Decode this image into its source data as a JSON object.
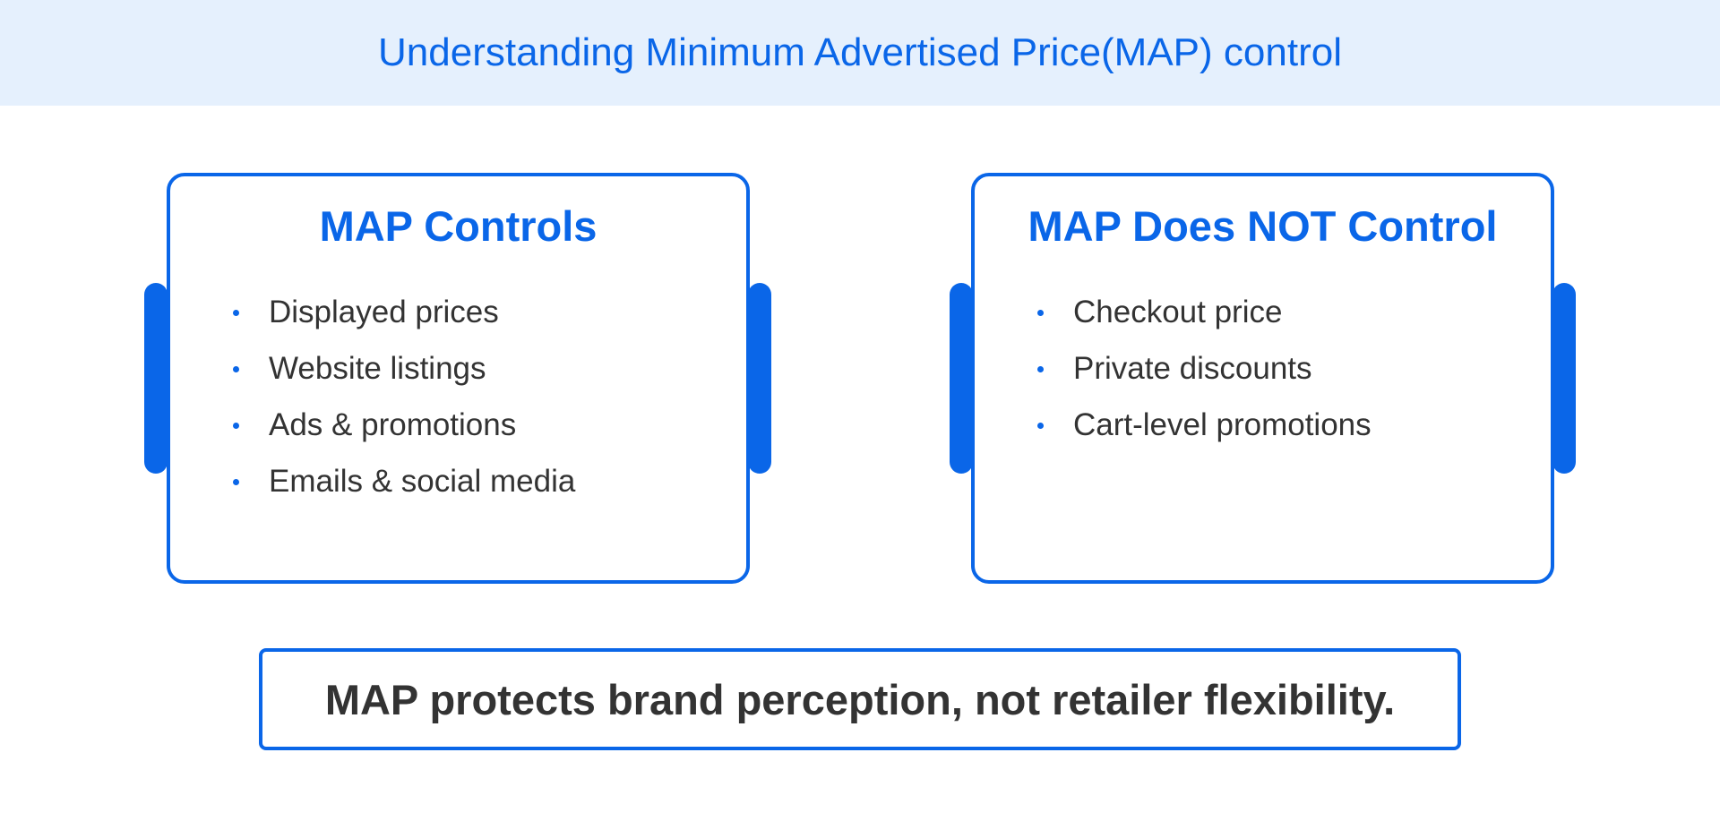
{
  "title": "Understanding Minimum Advertised Price(MAP) control",
  "left_card": {
    "heading": "MAP Controls",
    "items": [
      "Displayed prices",
      "Website listings",
      "Ads & promotions",
      "Emails & social media"
    ]
  },
  "right_card": {
    "heading": "MAP Does NOT Control",
    "items": [
      "Checkout price",
      "Private discounts",
      "Cart-level promotions"
    ]
  },
  "footer": "MAP protects brand perception, not retailer flexibility.",
  "colors": {
    "accent": "#0a66e8",
    "header_bg": "#e5f0fd",
    "text": "#333333"
  }
}
